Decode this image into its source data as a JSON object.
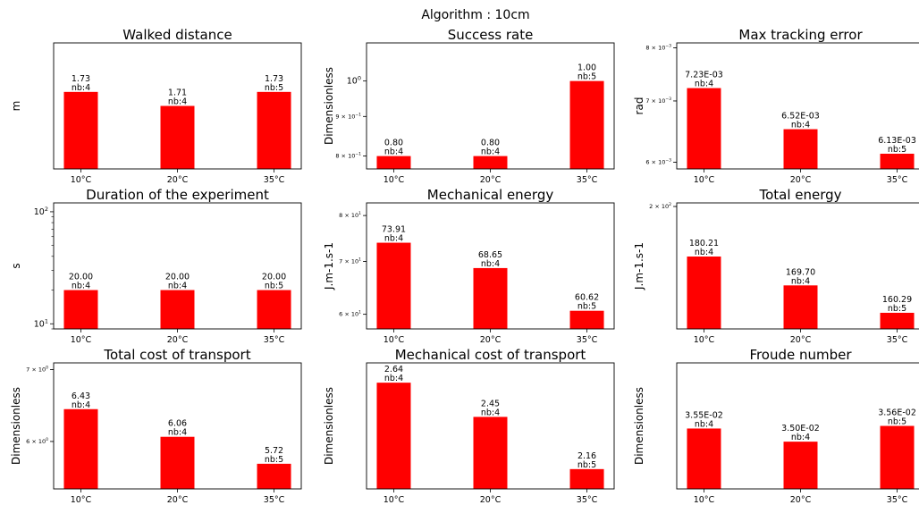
{
  "figure": {
    "title": "Algorithm : 10cm"
  },
  "style": {
    "bar_color": "#ff0000",
    "axis_color": "#000000"
  },
  "chart_data": [
    {
      "type": "bar",
      "title": "Walked distance",
      "ylabel": "m",
      "yscale": "linear",
      "categories": [
        "10°C",
        "20°C",
        "35°C"
      ],
      "values": [
        1.73,
        1.71,
        1.73
      ],
      "labels": [
        "1.73",
        "1.71",
        "1.73"
      ],
      "nb": [
        "nb:4",
        "nb:4",
        "nb:5"
      ],
      "ylim": [
        1.62,
        1.8
      ],
      "yticks": []
    },
    {
      "type": "bar",
      "title": "Success rate",
      "ylabel": "Dimensionless",
      "yscale": "log",
      "categories": [
        "10°C",
        "20°C",
        "35°C"
      ],
      "values": [
        0.8,
        0.8,
        1.0
      ],
      "labels": [
        "0.80",
        "0.80",
        "1.00"
      ],
      "nb": [
        "nb:4",
        "nb:4",
        "nb:5"
      ],
      "ylim": [
        0.77,
        1.12
      ],
      "yticks": [
        {
          "v": 0.8,
          "b": "8 × 10",
          "e": "−1",
          "minor": true
        },
        {
          "v": 0.9,
          "b": "9 × 10",
          "e": "−1",
          "minor": true
        },
        {
          "v": 1.0,
          "b": "10",
          "e": "0",
          "minor": false
        }
      ]
    },
    {
      "type": "bar",
      "title": "Max tracking error",
      "ylabel": "rad",
      "yscale": "log",
      "categories": [
        "10°C",
        "20°C",
        "35°C"
      ],
      "values": [
        0.00723,
        0.00652,
        0.00613
      ],
      "labels": [
        "7.23E-03",
        "6.52E-03",
        "6.13E-03"
      ],
      "nb": [
        "nb:4",
        "nb:4",
        "nb:5"
      ],
      "ylim": [
        0.0059,
        0.0081
      ],
      "yticks": [
        {
          "v": 0.006,
          "b": "6 × 10",
          "e": "−3",
          "minor": true
        },
        {
          "v": 0.007,
          "b": "7 × 10",
          "e": "−3",
          "minor": true
        },
        {
          "v": 0.008,
          "b": "8 × 10",
          "e": "−3",
          "minor": true
        }
      ]
    },
    {
      "type": "bar",
      "title": "Duration of the experiment",
      "ylabel": "s",
      "yscale": "log",
      "categories": [
        "10°C",
        "20°C",
        "35°C"
      ],
      "values": [
        20.0,
        20.0,
        20.0
      ],
      "labels": [
        "20.00",
        "20.00",
        "20.00"
      ],
      "nb": [
        "nb:4",
        "nb:4",
        "nb:5"
      ],
      "ylim": [
        9.0,
        120
      ],
      "yticks": [
        {
          "v": 10,
          "b": "10",
          "e": "1",
          "minor": false
        },
        {
          "v": 100,
          "b": "10",
          "e": "2",
          "minor": false
        }
      ]
    },
    {
      "type": "bar",
      "title": "Mechanical energy",
      "ylabel": "J.m-1.s-1",
      "yscale": "log",
      "categories": [
        "10°C",
        "20°C",
        "35°C"
      ],
      "values": [
        73.91,
        68.65,
        60.62
      ],
      "labels": [
        "73.91",
        "68.65",
        "60.62"
      ],
      "nb": [
        "nb:4",
        "nb:4",
        "nb:5"
      ],
      "ylim": [
        57.5,
        83
      ],
      "yticks": [
        {
          "v": 60,
          "b": "6 × 10",
          "e": "1",
          "minor": true
        },
        {
          "v": 70,
          "b": "7 × 10",
          "e": "1",
          "minor": true
        },
        {
          "v": 80,
          "b": "8 × 10",
          "e": "1",
          "minor": true
        }
      ]
    },
    {
      "type": "bar",
      "title": "Total energy",
      "ylabel": "J.m-1.s-1",
      "yscale": "log",
      "categories": [
        "10°C",
        "20°C",
        "35°C"
      ],
      "values": [
        180.21,
        169.7,
        160.29
      ],
      "labels": [
        "180.21",
        "169.70",
        "160.29"
      ],
      "nb": [
        "nb:4",
        "nb:4",
        "nb:5"
      ],
      "ylim": [
        155,
        201.5
      ],
      "yticks": [
        {
          "v": 200,
          "b": "2 × 10",
          "e": "2",
          "minor": true
        }
      ]
    },
    {
      "type": "bar",
      "title": "Total cost of transport",
      "ylabel": "Dimensionless",
      "yscale": "log",
      "categories": [
        "10°C",
        "20°C",
        "35°C"
      ],
      "values": [
        6.43,
        6.06,
        5.72
      ],
      "labels": [
        "6.43",
        "6.06",
        "5.72"
      ],
      "nb": [
        "nb:4",
        "nb:4",
        "nb:5"
      ],
      "ylim": [
        5.42,
        7.1
      ],
      "yticks": [
        {
          "v": 6,
          "b": "6 × 10",
          "e": "0",
          "minor": true
        },
        {
          "v": 7,
          "b": "7 × 10",
          "e": "0",
          "minor": true
        }
      ]
    },
    {
      "type": "bar",
      "title": "Mechanical cost of transport",
      "ylabel": "Dimensionless",
      "yscale": "linear",
      "categories": [
        "10°C",
        "20°C",
        "35°C"
      ],
      "values": [
        2.64,
        2.45,
        2.16
      ],
      "labels": [
        "2.64",
        "2.45",
        "2.16"
      ],
      "nb": [
        "nb:4",
        "nb:4",
        "nb:5"
      ],
      "ylim": [
        2.05,
        2.75
      ],
      "yticks": []
    },
    {
      "type": "bar",
      "title": "Froude number",
      "ylabel": "Dimensionless",
      "yscale": "linear",
      "categories": [
        "10°C",
        "20°C",
        "35°C"
      ],
      "values": [
        0.0355,
        0.035,
        0.0356
      ],
      "labels": [
        "3.55E-02",
        "3.50E-02",
        "3.56E-02"
      ],
      "nb": [
        "nb:4",
        "nb:4",
        "nb:5"
      ],
      "ylim": [
        0.0332,
        0.038
      ],
      "yticks": []
    }
  ]
}
